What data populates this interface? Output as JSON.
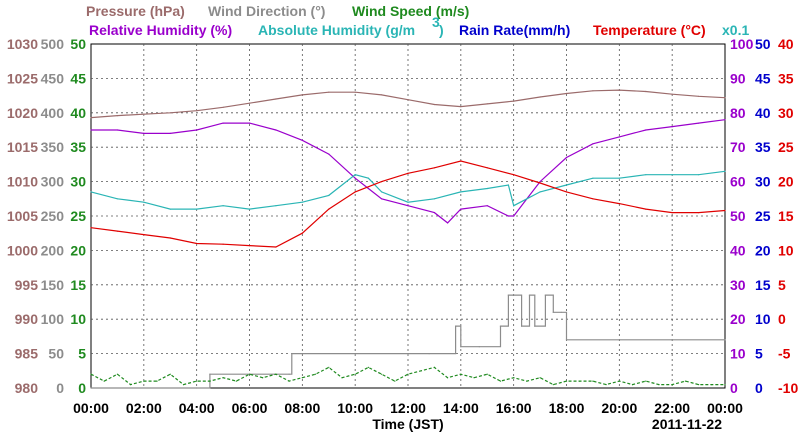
{
  "chart_data": {
    "type": "line",
    "date_label": "2011-11-22",
    "xlabel": "Time (JST)",
    "x_ticks": [
      "00:00",
      "02:00",
      "04:00",
      "06:00",
      "08:00",
      "10:00",
      "12:00",
      "14:00",
      "16:00",
      "18:00",
      "20:00",
      "22:00",
      "00:00"
    ],
    "x_hours_range": [
      0,
      24
    ],
    "grid": true,
    "legend_row1": {
      "pressure": "Pressure (hPa)",
      "wind_dir": "Wind Direction (°)",
      "wind_speed": "Wind Speed (m/s)"
    },
    "legend_row2": {
      "rel_humidity": "Relative Humidity (%)",
      "abs_humidity": "Absolute Humidity (g/m",
      "abs_humidity_sup": "3",
      "abs_humidity_close": ")",
      "rain_rate": "Rain Rate(mm/h)",
      "temperature": "Temperature (°C)",
      "abs_humidity_scale": "x0.1"
    },
    "axes": {
      "pressure": {
        "color": "#9b6b6b",
        "ticks": [
          "1030",
          "1025",
          "1020",
          "1015",
          "1010",
          "1005",
          "1000",
          "995",
          "990",
          "985",
          "980"
        ],
        "range": [
          980,
          1030
        ]
      },
      "wind_dir": {
        "color": "#8c8c8c",
        "ticks": [
          "500",
          "450",
          "400",
          "350",
          "300",
          "250",
          "200",
          "150",
          "100",
          "50",
          "0"
        ],
        "range": [
          0,
          500
        ]
      },
      "wind_speed": {
        "color": "#1f8a1f",
        "ticks": [
          "50",
          "45",
          "40",
          "35",
          "30",
          "25",
          "20",
          "15",
          "10",
          "5",
          "0"
        ],
        "range": [
          0,
          50
        ]
      },
      "humidity": {
        "color": "#9a00cc",
        "ticks": [
          "100",
          "90",
          "80",
          "70",
          "60",
          "50",
          "40",
          "30",
          "20",
          "10",
          "0"
        ],
        "range": [
          0,
          100
        ]
      },
      "rain": {
        "color": "#0000cc",
        "ticks": [
          "50",
          "45",
          "40",
          "35",
          "30",
          "25",
          "20",
          "15",
          "10",
          "5",
          "0"
        ],
        "range": [
          0,
          50
        ]
      },
      "temperature": {
        "color": "#e00000",
        "ticks": [
          "40",
          "35",
          "30",
          "25",
          "20",
          "15",
          "10",
          "5",
          "0",
          "-5",
          "-10"
        ],
        "range": [
          -10,
          40
        ]
      }
    },
    "series": [
      {
        "name": "Pressure (hPa)",
        "color": "#9b6b6b",
        "axis": "pressure",
        "x": [
          0,
          1,
          2,
          3,
          4,
          5,
          6,
          7,
          8,
          9,
          10,
          11,
          12,
          13,
          14,
          15,
          16,
          17,
          18,
          19,
          20,
          21,
          22,
          23,
          24
        ],
        "values": [
          1019.3,
          1019.6,
          1019.8,
          1020.0,
          1020.3,
          1020.8,
          1021.4,
          1022.0,
          1022.6,
          1023.0,
          1023.0,
          1022.6,
          1021.9,
          1021.2,
          1020.9,
          1021.3,
          1021.7,
          1022.3,
          1022.8,
          1023.2,
          1023.3,
          1023.1,
          1022.7,
          1022.4,
          1022.2
        ]
      },
      {
        "name": "Relative Humidity (%)",
        "color": "#9a00cc",
        "axis": "humidity",
        "x": [
          0,
          1,
          2,
          3,
          4,
          5,
          6,
          7,
          8,
          9,
          10,
          10.5,
          11,
          12,
          13,
          13.5,
          14,
          15,
          15.8,
          16,
          16.5,
          17,
          18,
          19,
          20,
          21,
          22,
          23,
          24
        ],
        "values": [
          75,
          75,
          74,
          74,
          75,
          77,
          77,
          75,
          72,
          68,
          61,
          58,
          55,
          53,
          51,
          48,
          52,
          53,
          50,
          50,
          55,
          60,
          67,
          71,
          73,
          75,
          76,
          77,
          78
        ]
      },
      {
        "name": "Absolute Humidity (g/m3) x0.1",
        "color": "#2ab5b5",
        "axis": "humidity",
        "x": [
          0,
          1,
          2,
          3,
          4,
          5,
          6,
          7,
          8,
          9,
          10,
          10.5,
          11,
          12,
          13,
          14,
          15,
          15.8,
          16,
          16.5,
          17,
          18,
          19,
          20,
          21,
          22,
          23,
          24
        ],
        "values": [
          57,
          55,
          54,
          52,
          52,
          53,
          52,
          53,
          54,
          56,
          62,
          61,
          57,
          54,
          55,
          57,
          58,
          59,
          53,
          55,
          57,
          59,
          61,
          61,
          62,
          62,
          62,
          63
        ]
      },
      {
        "name": "Temperature (°C)",
        "color": "#e00000",
        "axis": "temperature",
        "x": [
          0,
          1,
          2,
          3,
          4,
          5,
          6,
          7,
          8,
          9,
          10,
          11,
          12,
          13,
          14,
          15,
          16,
          17,
          18,
          19,
          20,
          21,
          22,
          23,
          24
        ],
        "values": [
          13.3,
          12.8,
          12.3,
          11.8,
          11.0,
          10.9,
          10.7,
          10.5,
          12.5,
          16.0,
          18.5,
          20.0,
          21.2,
          22.0,
          23.0,
          22.0,
          21.0,
          19.8,
          18.5,
          17.5,
          16.8,
          16.0,
          15.5,
          15.5,
          15.8
        ]
      },
      {
        "name": "Wind Direction (°)",
        "color": "#8c8c8c",
        "axis": "wind_dir",
        "step": true,
        "x": [
          0,
          4.0,
          4.5,
          7.5,
          7.6,
          12.8,
          13.8,
          14.0,
          14.7,
          15.5,
          15.8,
          16.3,
          16.6,
          16.8,
          17.2,
          17.5,
          17.8,
          18.0,
          24
        ],
        "values": [
          0,
          0,
          20,
          20,
          50,
          50,
          90,
          60,
          60,
          90,
          135,
          90,
          135,
          90,
          135,
          110,
          110,
          70,
          70
        ]
      },
      {
        "name": "Wind Speed (m/s)",
        "color": "#1f8a1f",
        "axis": "wind_speed",
        "x": [
          0,
          0.5,
          1,
          1.5,
          2,
          2.5,
          3,
          3.5,
          4,
          4.5,
          5,
          5.5,
          6,
          6.5,
          7,
          7.5,
          8,
          8.5,
          9,
          9.5,
          10,
          10.5,
          11,
          11.5,
          12,
          12.5,
          13,
          13.5,
          14,
          14.5,
          15,
          15.5,
          16,
          16.5,
          17,
          17.5,
          18,
          18.5,
          19,
          19.5,
          20,
          20.5,
          21,
          21.5,
          22,
          22.5,
          23,
          23.5,
          24
        ],
        "values": [
          2,
          1,
          2,
          0.5,
          1,
          1,
          2,
          0.5,
          1,
          1,
          1.5,
          1,
          2,
          1.5,
          2,
          1,
          1.5,
          2,
          3,
          1.5,
          2,
          3,
          2,
          1,
          2,
          2.5,
          3,
          1.5,
          2,
          1.5,
          2,
          1,
          1.5,
          1,
          1.5,
          0.5,
          1,
          1,
          1,
          0.5,
          1,
          0.5,
          1,
          0.5,
          0.5,
          1,
          0.5,
          0.5,
          0.5
        ]
      }
    ]
  }
}
